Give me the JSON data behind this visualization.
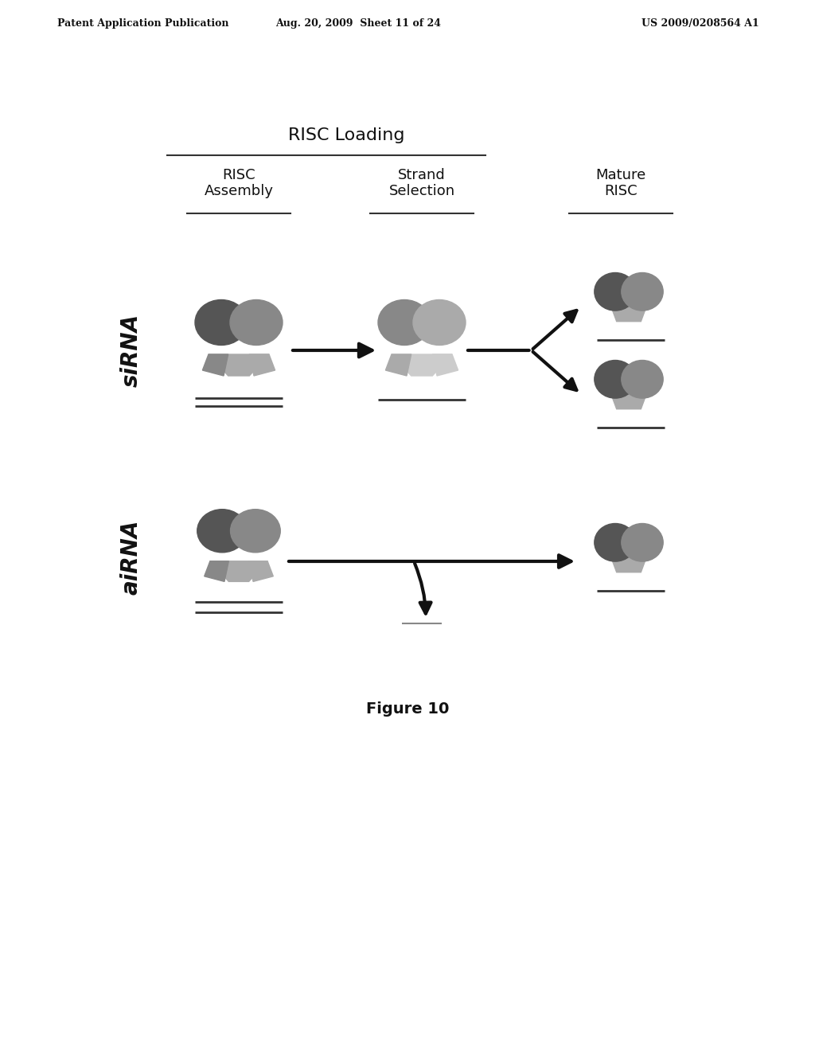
{
  "header_left": "Patent Application Publication",
  "header_mid": "Aug. 20, 2009  Sheet 11 of 24",
  "header_right": "US 2009/0208564 A1",
  "title_risc": "RISC Loading",
  "col1_label": "RISC\nAssembly",
  "col2_label": "Strand\nSelection",
  "col3_label": "Mature\nRISC",
  "row1_label": "siRNA",
  "row2_label": "aiRNA",
  "figure_caption": "Figure 10",
  "bg_color": "#ffffff",
  "dark_gray": "#555555",
  "med_gray": "#888888",
  "light_gray": "#aaaaaa",
  "very_light_gray": "#cccccc"
}
